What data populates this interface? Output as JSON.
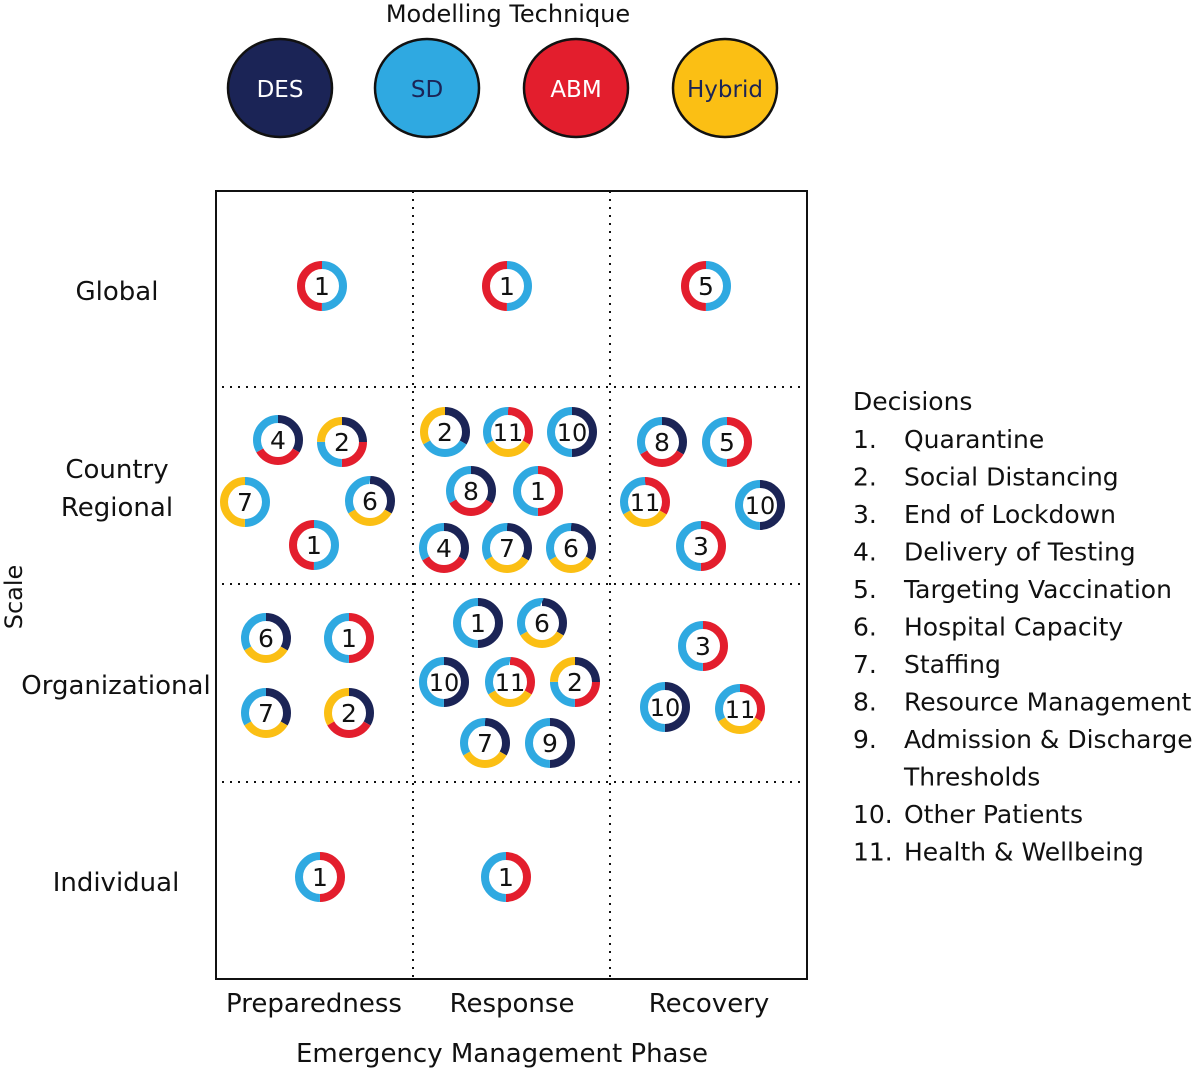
{
  "legend": {
    "title": "Modelling Technique",
    "techniques": [
      {
        "key": "DES",
        "label": "DES",
        "color": "#1b2456",
        "text_color": "#ffffff"
      },
      {
        "key": "SD",
        "label": "SD",
        "color": "#2fa9e1",
        "text_color": "#1b2456"
      },
      {
        "key": "ABM",
        "label": "ABM",
        "color": "#e31e2d",
        "text_color": "#ffffff"
      },
      {
        "key": "Hybrid",
        "label": "Hybrid",
        "color": "#fbbf14",
        "text_color": "#1b2456"
      }
    ]
  },
  "axes": {
    "y_title": "Scale",
    "x_title": "Emergency Management Phase",
    "rows": [
      "Global",
      "Country\nRegional",
      "Organizational",
      "Individual"
    ],
    "columns": [
      "Preparedness",
      "Response",
      "Recovery"
    ]
  },
  "decisions": {
    "title": "Decisions",
    "items": [
      {
        "num": "1.",
        "text": "Quarantine"
      },
      {
        "num": "2.",
        "text": "Social Distancing"
      },
      {
        "num": "3.",
        "text": "End of Lockdown"
      },
      {
        "num": "4.",
        "text": "Delivery of Testing"
      },
      {
        "num": "5.",
        "text": "Targeting Vaccination"
      },
      {
        "num": "6.",
        "text": "Hospital Capacity"
      },
      {
        "num": "7.",
        "text": "Staffing"
      },
      {
        "num": "8.",
        "text": "Resource Management"
      },
      {
        "num": "9.",
        "text": "Admission & Discharge\nThresholds"
      },
      {
        "num": "10.",
        "text": "Other Patients"
      },
      {
        "num": "11.",
        "text": "Health & Wellbeing"
      }
    ]
  },
  "studies": [
    {
      "row": "Global",
      "col": "Preparedness",
      "label": "1",
      "ring": [
        "SD",
        "ABM"
      ]
    },
    {
      "row": "Global",
      "col": "Response",
      "label": "1",
      "ring": [
        "SD",
        "ABM"
      ]
    },
    {
      "row": "Global",
      "col": "Recovery",
      "label": "5",
      "ring": [
        "SD",
        "ABM"
      ]
    },
    {
      "row": "Country Regional",
      "col": "Preparedness",
      "label": "4",
      "ring": [
        "DES",
        "ABM",
        "SD"
      ]
    },
    {
      "row": "Country Regional",
      "col": "Preparedness",
      "label": "2",
      "ring": [
        "DES",
        "ABM",
        "SD",
        "Hybrid"
      ]
    },
    {
      "row": "Country Regional",
      "col": "Preparedness",
      "label": "7",
      "ring": [
        "SD",
        "Hybrid"
      ]
    },
    {
      "row": "Country Regional",
      "col": "Preparedness",
      "label": "6",
      "ring": [
        "DES",
        "Hybrid",
        "SD"
      ]
    },
    {
      "row": "Country Regional",
      "col": "Preparedness",
      "label": "1",
      "ring": [
        "SD",
        "ABM"
      ]
    },
    {
      "row": "Country Regional",
      "col": "Response",
      "label": "2",
      "ring": [
        "DES",
        "SD",
        "Hybrid"
      ]
    },
    {
      "row": "Country Regional",
      "col": "Response",
      "label": "11",
      "ring": [
        "ABM",
        "Hybrid",
        "SD"
      ]
    },
    {
      "row": "Country Regional",
      "col": "Response",
      "label": "10",
      "ring": [
        "DES",
        "SD"
      ]
    },
    {
      "row": "Country Regional",
      "col": "Response",
      "label": "8",
      "ring": [
        "DES",
        "ABM",
        "SD"
      ]
    },
    {
      "row": "Country Regional",
      "col": "Response",
      "label": "1",
      "ring": [
        "ABM",
        "SD"
      ]
    },
    {
      "row": "Country Regional",
      "col": "Response",
      "label": "4",
      "ring": [
        "DES",
        "ABM",
        "SD"
      ]
    },
    {
      "row": "Country Regional",
      "col": "Response",
      "label": "7",
      "ring": [
        "DES",
        "Hybrid",
        "SD"
      ]
    },
    {
      "row": "Country Regional",
      "col": "Response",
      "label": "6",
      "ring": [
        "DES",
        "Hybrid",
        "SD"
      ]
    },
    {
      "row": "Country Regional",
      "col": "Recovery",
      "label": "8",
      "ring": [
        "DES",
        "ABM",
        "SD"
      ]
    },
    {
      "row": "Country Regional",
      "col": "Recovery",
      "label": "5",
      "ring": [
        "ABM",
        "SD"
      ]
    },
    {
      "row": "Country Regional",
      "col": "Recovery",
      "label": "11",
      "ring": [
        "ABM",
        "Hybrid",
        "SD"
      ]
    },
    {
      "row": "Country Regional",
      "col": "Recovery",
      "label": "10",
      "ring": [
        "DES",
        "SD"
      ]
    },
    {
      "row": "Country Regional",
      "col": "Recovery",
      "label": "3",
      "ring": [
        "ABM",
        "SD"
      ]
    },
    {
      "row": "Organizational",
      "col": "Preparedness",
      "label": "6",
      "ring": [
        "DES",
        "Hybrid",
        "SD"
      ]
    },
    {
      "row": "Organizational",
      "col": "Preparedness",
      "label": "1",
      "ring": [
        "ABM",
        "SD"
      ]
    },
    {
      "row": "Organizational",
      "col": "Preparedness",
      "label": "7",
      "ring": [
        "DES",
        "Hybrid",
        "SD"
      ]
    },
    {
      "row": "Organizational",
      "col": "Preparedness",
      "label": "2",
      "ring": [
        "DES",
        "ABM",
        "Hybrid"
      ]
    },
    {
      "row": "Organizational",
      "col": "Response",
      "label": "1",
      "ring": [
        "DES",
        "SD"
      ]
    },
    {
      "row": "Organizational",
      "col": "Response",
      "label": "6",
      "ring": [
        "DES",
        "Hybrid",
        "SD"
      ]
    },
    {
      "row": "Organizational",
      "col": "Response",
      "label": "10",
      "ring": [
        "DES",
        "SD"
      ]
    },
    {
      "row": "Organizational",
      "col": "Response",
      "label": "11",
      "ring": [
        "ABM",
        "Hybrid",
        "SD"
      ]
    },
    {
      "row": "Organizational",
      "col": "Response",
      "label": "2",
      "ring": [
        "DES",
        "ABM",
        "SD",
        "Hybrid"
      ]
    },
    {
      "row": "Organizational",
      "col": "Response",
      "label": "7",
      "ring": [
        "DES",
        "Hybrid",
        "SD"
      ]
    },
    {
      "row": "Organizational",
      "col": "Response",
      "label": "9",
      "ring": [
        "DES",
        "SD"
      ]
    },
    {
      "row": "Organizational",
      "col": "Recovery",
      "label": "3",
      "ring": [
        "ABM",
        "SD"
      ]
    },
    {
      "row": "Organizational",
      "col": "Recovery",
      "label": "10",
      "ring": [
        "DES",
        "SD"
      ]
    },
    {
      "row": "Organizational",
      "col": "Recovery",
      "label": "11",
      "ring": [
        "ABM",
        "Hybrid",
        "SD"
      ]
    },
    {
      "row": "Individual",
      "col": "Preparedness",
      "label": "1",
      "ring": [
        "ABM",
        "SD"
      ]
    },
    {
      "row": "Individual",
      "col": "Response",
      "label": "1",
      "ring": [
        "ABM",
        "SD"
      ]
    }
  ]
}
